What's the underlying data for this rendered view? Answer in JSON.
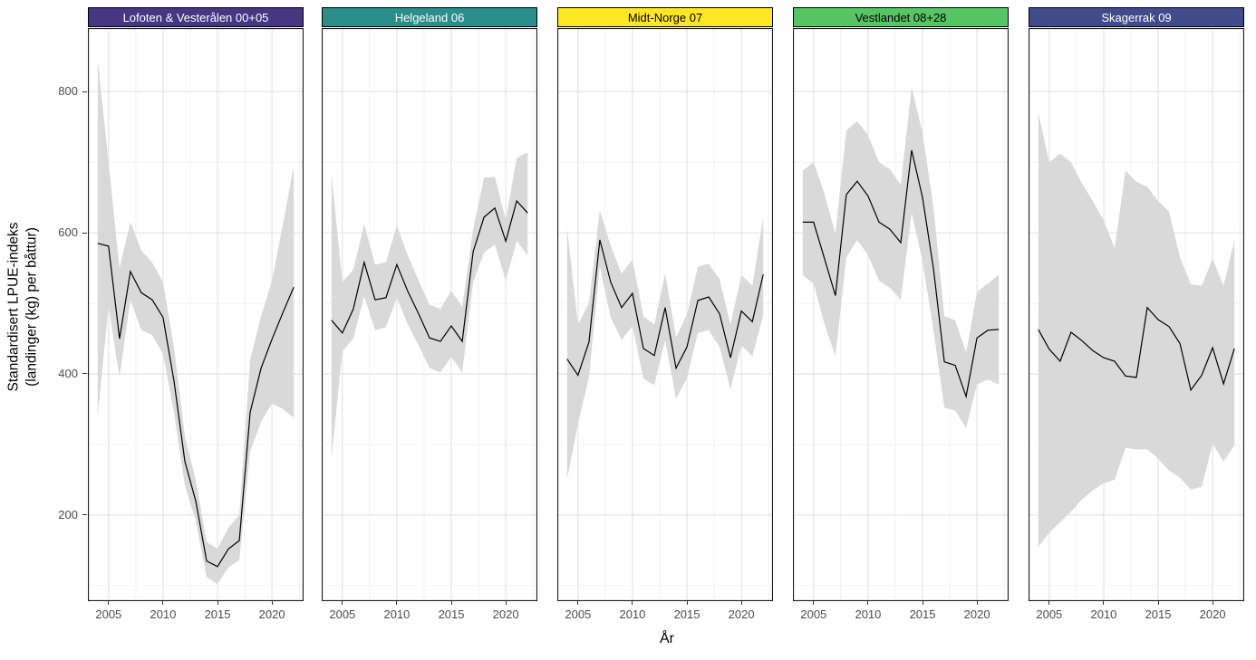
{
  "figure": {
    "y_axis_title_line1": "Standardisert LPUE-indeks",
    "y_axis_title_line2": "(landinger (kg) per båttur)",
    "x_axis_title": "År",
    "background": "#ffffff",
    "line_color": "#000000",
    "ribbon_color": "#d9d9d9",
    "grid_major_color": "#e4e4e4",
    "grid_minor_color": "#f1f1f1",
    "panel_border_color": "#1a1a1a",
    "axis_text_color": "#4d4d4d"
  },
  "y_axis": {
    "tick_labels": [
      "800",
      "600",
      "400",
      "200"
    ],
    "tick_values": [
      800,
      600,
      400,
      200
    ]
  },
  "x_axis": {
    "tick_labels": [
      "2005",
      "2010",
      "2015",
      "2020"
    ],
    "tick_values": [
      2005,
      2010,
      2015,
      2020
    ]
  },
  "chart_data": [
    {
      "type": "line",
      "title": "Lofoten & Vesterålen 00+05",
      "strip_color": "#453781",
      "strip_text_color": "#ffffff",
      "xlabel": "År",
      "ylabel": "Standardisert LPUE-indeks (landinger (kg) per båttur)",
      "xlim": [
        2003.1,
        2022.9
      ],
      "ylim": [
        78,
        890
      ],
      "x_ticks": [
        2005,
        2010,
        2015,
        2020
      ],
      "y_ticks": [
        200,
        400,
        600,
        800
      ],
      "x": [
        2004,
        2005,
        2006,
        2007,
        2008,
        2009,
        2010,
        2011,
        2012,
        2013,
        2014,
        2015,
        2016,
        2017,
        2018,
        2019,
        2020,
        2021,
        2022
      ],
      "line": [
        585,
        581,
        450,
        545,
        515,
        505,
        480,
        390,
        276,
        220,
        135,
        127,
        152,
        164,
        346,
        408,
        449,
        487,
        523
      ],
      "ribbon_lower": [
        340,
        496,
        395,
        505,
        462,
        455,
        428,
        345,
        242,
        192,
        112,
        102,
        126,
        136,
        290,
        332,
        358,
        350,
        338
      ],
      "ribbon_upper": [
        845,
        700,
        550,
        615,
        575,
        558,
        530,
        438,
        312,
        250,
        162,
        152,
        182,
        200,
        420,
        482,
        532,
        612,
        695
      ]
    },
    {
      "type": "line",
      "title": "Helgeland 06",
      "strip_color": "#2b8e8b",
      "strip_text_color": "#ffffff",
      "xlabel": "År",
      "ylabel": "Standardisert LPUE-indeks (landinger (kg) per båttur)",
      "xlim": [
        2003.1,
        2022.9
      ],
      "ylim": [
        78,
        890
      ],
      "x_ticks": [
        2005,
        2010,
        2015,
        2020
      ],
      "y_ticks": [
        200,
        400,
        600,
        800
      ],
      "x": [
        2004,
        2005,
        2006,
        2007,
        2008,
        2009,
        2010,
        2011,
        2012,
        2013,
        2014,
        2015,
        2016,
        2017,
        2018,
        2019,
        2020,
        2021,
        2022
      ],
      "line": [
        476,
        458,
        492,
        558,
        505,
        508,
        555,
        517,
        485,
        451,
        446,
        468,
        446,
        573,
        622,
        635,
        588,
        645,
        628
      ],
      "ribbon_lower": [
        280,
        432,
        450,
        510,
        462,
        466,
        508,
        470,
        440,
        408,
        402,
        424,
        402,
        530,
        572,
        583,
        532,
        588,
        568
      ],
      "ribbon_upper": [
        684,
        530,
        548,
        612,
        555,
        558,
        610,
        568,
        532,
        498,
        492,
        518,
        495,
        605,
        678,
        679,
        618,
        706,
        714
      ]
    },
    {
      "type": "line",
      "title": "Midt-Norge 07",
      "strip_color": "#fde725",
      "strip_text_color": "#000000",
      "xlabel": "År",
      "ylabel": "Standardisert LPUE-indeks (landinger (kg) per båttur)",
      "xlim": [
        2003.1,
        2022.9
      ],
      "ylim": [
        78,
        890
      ],
      "x_ticks": [
        2005,
        2010,
        2015,
        2020
      ],
      "y_ticks": [
        200,
        400,
        600,
        800
      ],
      "x": [
        2004,
        2005,
        2006,
        2007,
        2008,
        2009,
        2010,
        2011,
        2012,
        2013,
        2014,
        2015,
        2016,
        2017,
        2018,
        2019,
        2020,
        2021,
        2022
      ],
      "line": [
        421,
        398,
        445,
        590,
        530,
        494,
        514,
        436,
        426,
        494,
        408,
        438,
        504,
        509,
        485,
        423,
        489,
        474,
        541
      ],
      "ribbon_lower": [
        250,
        330,
        395,
        552,
        480,
        448,
        468,
        393,
        384,
        448,
        365,
        394,
        458,
        462,
        438,
        378,
        440,
        425,
        483
      ],
      "ribbon_upper": [
        607,
        470,
        500,
        632,
        582,
        542,
        562,
        482,
        470,
        543,
        452,
        484,
        552,
        556,
        534,
        470,
        540,
        525,
        622
      ]
    },
    {
      "type": "line",
      "title": "Vestlandet 08+28",
      "strip_color": "#58c565",
      "strip_text_color": "#000000",
      "xlabel": "År",
      "ylabel": "Standardisert LPUE-indeks (landinger (kg) per båttur)",
      "xlim": [
        2003.1,
        2022.9
      ],
      "ylim": [
        78,
        890
      ],
      "x_ticks": [
        2005,
        2010,
        2015,
        2020
      ],
      "y_ticks": [
        200,
        400,
        600,
        800
      ],
      "x": [
        2004,
        2005,
        2006,
        2007,
        2008,
        2009,
        2010,
        2011,
        2012,
        2013,
        2014,
        2015,
        2016,
        2017,
        2018,
        2019,
        2020,
        2021,
        2022
      ],
      "line": [
        615,
        615,
        563,
        511,
        654,
        673,
        652,
        615,
        605,
        586,
        717,
        650,
        549,
        417,
        412,
        368,
        451,
        462,
        463
      ],
      "ribbon_lower": [
        540,
        528,
        470,
        425,
        565,
        590,
        568,
        532,
        522,
        505,
        628,
        560,
        462,
        352,
        348,
        323,
        385,
        392,
        385
      ],
      "ribbon_upper": [
        688,
        700,
        655,
        598,
        745,
        758,
        738,
        700,
        690,
        668,
        806,
        742,
        636,
        482,
        476,
        430,
        516,
        528,
        540
      ]
    },
    {
      "type": "line",
      "title": "Skagerrak 09",
      "strip_color": "#414c8c",
      "strip_text_color": "#ffffff",
      "xlabel": "År",
      "ylabel": "Standardisert LPUE-indeks (landinger (kg) per båttur)",
      "xlim": [
        2003.1,
        2022.9
      ],
      "ylim": [
        78,
        890
      ],
      "x_ticks": [
        2005,
        2010,
        2015,
        2020
      ],
      "y_ticks": [
        200,
        400,
        600,
        800
      ],
      "x": [
        2004,
        2005,
        2006,
        2007,
        2008,
        2009,
        2010,
        2011,
        2012,
        2013,
        2014,
        2015,
        2016,
        2017,
        2018,
        2019,
        2020,
        2021,
        2022
      ],
      "line": [
        463,
        435,
        418,
        459,
        447,
        433,
        423,
        418,
        397,
        395,
        494,
        477,
        467,
        443,
        377,
        398,
        437,
        386,
        436
      ],
      "ribbon_lower": [
        155,
        175,
        190,
        205,
        222,
        235,
        245,
        250,
        295,
        293,
        293,
        280,
        263,
        253,
        236,
        240,
        301,
        276,
        299
      ],
      "ribbon_upper": [
        770,
        700,
        712,
        700,
        670,
        645,
        618,
        578,
        688,
        672,
        665,
        645,
        630,
        565,
        527,
        525,
        563,
        525,
        590
      ]
    }
  ]
}
